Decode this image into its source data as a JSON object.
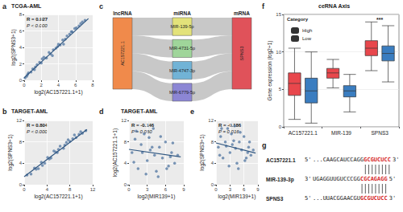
{
  "chart_data": [
    {
      "panel_label": "a",
      "type": "scatter",
      "title": "TCGA-AML",
      "x_label": "log2(AC157221.1+1)",
      "y_label": "log2(SPNS3+1)",
      "annotations": [
        "R = 0.927",
        "P < 0.000"
      ],
      "xlim": [
        0,
        8
      ],
      "xticks": [
        0,
        2,
        4,
        6,
        8
      ],
      "ylim": [
        0,
        8
      ],
      "yticks": [
        0,
        2,
        4,
        6,
        8
      ],
      "grid": true,
      "series": [
        {
          "color": "#4f74a0",
          "marker": "circle",
          "x": [
            0.1,
            0.3,
            0.5,
            0.8,
            1.0,
            1.2,
            1.5,
            1.8,
            2.0,
            2.3,
            2.6,
            2.9,
            3.1,
            3.4,
            3.7,
            4.0,
            4.2,
            4.5,
            4.8,
            5.0,
            5.3,
            5.6,
            5.9,
            6.1,
            6.4,
            6.8,
            7.1,
            2.1,
            3.3,
            4.6,
            5.5,
            0.4,
            1.3,
            6.6,
            3.9
          ],
          "values": [
            0.3,
            0.5,
            0.9,
            1.0,
            1.4,
            1.3,
            1.9,
            2.2,
            2.1,
            2.8,
            2.7,
            3.4,
            3.2,
            3.7,
            3.9,
            4.4,
            4.3,
            4.9,
            5.0,
            5.4,
            5.6,
            5.9,
            6.3,
            6.4,
            6.6,
            7.1,
            7.3,
            2.6,
            3.0,
            4.4,
            5.9,
            0.7,
            1.6,
            6.9,
            4.1
          ]
        },
        {
          "type": "line",
          "color": "#2f5680",
          "x": [
            0,
            7.5
          ],
          "values": [
            0.3,
            7.5
          ]
        }
      ]
    },
    {
      "panel_label": "b",
      "type": "scatter",
      "title": "TARGET-AML",
      "x_label": "log2(AC157221.1+1)",
      "y_label": "log2(SPNS3+1)",
      "annotations": [
        "R = 0.804",
        "P < 0.000"
      ],
      "xlim": [
        0,
        12
      ],
      "xticks": [
        0,
        4,
        8,
        12
      ],
      "ylim": [
        0,
        12
      ],
      "yticks": [
        0,
        4,
        8,
        12
      ],
      "grid": true,
      "series": [
        {
          "color": "#4f74a0",
          "marker": "circle",
          "x": [
            0.5,
            1.2,
            1.8,
            2.5,
            3.0,
            3.6,
            4.1,
            4.7,
            5.2,
            5.8,
            6.3,
            6.9,
            7.4,
            8.0,
            8.5,
            9.1,
            9.6,
            10.2,
            10.8,
            3.2,
            5.5,
            7.1,
            8.8,
            2.1,
            6.0,
            9.9,
            4.4,
            7.7
          ],
          "values": [
            1.8,
            2.0,
            3.1,
            3.0,
            4.2,
            4.0,
            5.1,
            5.0,
            6.3,
            6.0,
            7.2,
            6.8,
            7.9,
            8.1,
            8.6,
            8.8,
            9.4,
            9.6,
            10.1,
            3.6,
            6.1,
            7.4,
            9.3,
            2.9,
            6.6,
            9.9,
            4.8,
            8.4
          ]
        },
        {
          "type": "line",
          "color": "#2f5680",
          "x": [
            0,
            11
          ],
          "values": [
            1.5,
            10.3
          ]
        }
      ]
    },
    {
      "panel_label": "c",
      "type": "sankey",
      "columns": [
        "lncRNA",
        "miRNA",
        "mRNA"
      ],
      "nodes": [
        {
          "name": "AC157221.1",
          "color": "#f08a4b"
        },
        {
          "name": "MIR-139-5p",
          "color": "#e3e27a"
        },
        {
          "name": "MIR-4731-5p",
          "color": "#9fd59a"
        },
        {
          "name": "MIR-4747-3p",
          "color": "#71b3d6"
        },
        {
          "name": "MIR-6779-5p",
          "color": "#8c86d4"
        },
        {
          "name": "SPNS3",
          "color": "#e0525a"
        }
      ],
      "links": [
        {
          "source": "AC157221.1",
          "target": "MIR-139-5p",
          "value": 1
        },
        {
          "source": "AC157221.1",
          "target": "MIR-4731-5p",
          "value": 1
        },
        {
          "source": "AC157221.1",
          "target": "MIR-4747-3p",
          "value": 1
        },
        {
          "source": "AC157221.1",
          "target": "MIR-6779-5p",
          "value": 1
        },
        {
          "source": "MIR-139-5p",
          "target": "SPNS3",
          "value": 1
        },
        {
          "source": "MIR-4731-5p",
          "target": "SPNS3",
          "value": 1
        },
        {
          "source": "MIR-4747-3p",
          "target": "SPNS3",
          "value": 1
        },
        {
          "source": "MIR-6779-5p",
          "target": "SPNS3",
          "value": 1
        }
      ]
    },
    {
      "panel_label": "d",
      "type": "scatter",
      "title": "TARGET-AML",
      "x_label": "log2(MIR139+1)",
      "y_label": "log2(AC157221.1+1)",
      "annotations": [
        "R = -0.146",
        "P = 0.060"
      ],
      "xlim": [
        0,
        9
      ],
      "xticks": [
        0,
        3,
        6,
        9
      ],
      "ylim": [
        0,
        12
      ],
      "yticks": [
        0,
        4,
        8,
        12
      ],
      "grid": true,
      "series": [
        {
          "color": "#4f74a0",
          "marker": "circle",
          "x": [
            0.5,
            1.0,
            1.5,
            2.0,
            2.5,
            3.0,
            3.5,
            4.0,
            4.5,
            5.0,
            5.5,
            6.0,
            6.5,
            7.0,
            7.5,
            8.0,
            1.2,
            2.8,
            3.3,
            4.2,
            5.2,
            6.2,
            7.2,
            0.8,
            2.2,
            4.8,
            6.8,
            3.8
          ],
          "values": [
            6.0,
            8.5,
            3.0,
            7.5,
            9.5,
            4.5,
            6.5,
            10.5,
            2.5,
            7.0,
            5.0,
            8.0,
            3.5,
            6.0,
            4.0,
            5.5,
            10.0,
            2.0,
            8.8,
            5.5,
            9.0,
            3.0,
            7.8,
            4.2,
            6.0,
            1.5,
            5.2,
            7.0
          ]
        },
        {
          "type": "line",
          "color": "#2f5680",
          "x": [
            0,
            8.5
          ],
          "values": [
            6.6,
            5.2
          ]
        }
      ]
    },
    {
      "panel_label": "e",
      "type": "scatter",
      "x_label": "log2(MIR139+1)",
      "y_label": "log2(SPNS3+1)",
      "annotations": [
        "R = -0.186",
        "P = 0.016"
      ],
      "xlim": [
        0,
        9
      ],
      "xticks": [
        0,
        3,
        6,
        9
      ],
      "ylim": [
        0,
        12
      ],
      "yticks": [
        0,
        4,
        8,
        12
      ],
      "grid": true,
      "series": [
        {
          "color": "#4f74a0",
          "marker": "circle",
          "x": [
            0.5,
            1.0,
            1.5,
            2.0,
            2.5,
            3.0,
            3.5,
            4.0,
            4.5,
            5.0,
            5.5,
            6.0,
            6.5,
            7.0,
            7.5,
            8.0,
            1.2,
            2.8,
            3.3,
            4.2,
            5.2,
            6.2,
            7.2,
            0.8,
            2.2,
            4.8,
            6.8,
            3.8
          ],
          "values": [
            7.0,
            9.0,
            5.0,
            8.0,
            10.5,
            6.0,
            7.5,
            11.0,
            4.0,
            8.0,
            6.5,
            9.0,
            5.0,
            7.0,
            5.5,
            6.5,
            10.5,
            3.5,
            9.5,
            6.8,
            9.8,
            4.5,
            8.0,
            5.5,
            7.2,
            3.0,
            6.0,
            8.2
          ]
        },
        {
          "type": "line",
          "color": "#2f5680",
          "x": [
            0,
            8.5
          ],
          "values": [
            7.8,
            5.9
          ]
        }
      ]
    },
    {
      "panel_label": "f",
      "type": "boxplot",
      "title": "ceRNA Axis",
      "y_label": "Gene expression (log2+1)",
      "categories": [
        "AC157221.1",
        "MIR-139",
        "SPNS3"
      ],
      "legend": "top-left",
      "legend_title": "Category",
      "annotations": [
        "***"
      ],
      "ylim": [
        0,
        15
      ],
      "yticks": [
        0,
        5,
        10,
        15
      ],
      "grid": true,
      "series": [
        {
          "name": "High",
          "color": "#e8474c",
          "values": [
            [
              1.0,
              4.2,
              5.8,
              7.2,
              10.5
            ],
            [
              5.2,
              6.5,
              7.2,
              7.8,
              9.0
            ],
            [
              7.5,
              9.5,
              10.5,
              11.5,
              14.0
            ]
          ]
        },
        {
          "name": "Low",
          "color": "#3a7dc0",
          "values": [
            [
              0.5,
              3.2,
              4.8,
              6.5,
              10.0
            ],
            [
              2.0,
              4.0,
              4.8,
              5.5,
              7.0
            ],
            [
              6.0,
              8.8,
              9.8,
              10.8,
              13.5
            ]
          ]
        }
      ]
    }
  ],
  "alignment": {
    "panel_label": "g",
    "rows": [
      {
        "name": "AC157221.1",
        "start": "5'",
        "sequence": "...CAAGCAUCCAGG",
        "seed": "GCGUCUCC",
        "end": "3'"
      },
      {
        "name": "MIR-139-3p",
        "start": "3'",
        "sequence": "UGAGGUUGUCCCGG",
        "seed": "CGCAGAGG",
        "end": "5'"
      },
      {
        "name": "SPNS3",
        "start": "5'",
        "sequence": "...UUACGGAACGU",
        "seed": "GCGUCUCC",
        "end": "3'"
      }
    ]
  }
}
